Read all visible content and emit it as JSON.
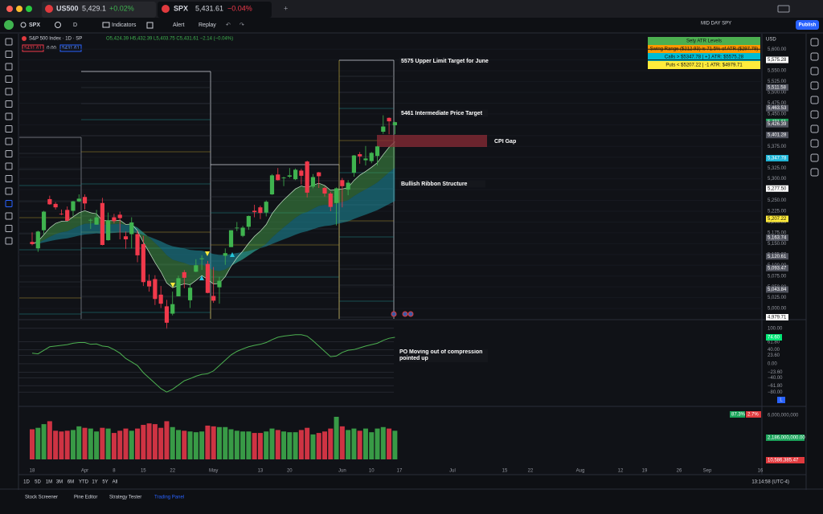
{
  "tabs": [
    {
      "symbol": "US500",
      "price": "5,429.1",
      "change": "+0.02%"
    },
    {
      "symbol": "SPX",
      "price": "5,431.61",
      "change": "−0.04%"
    }
  ],
  "toolbar": {
    "symbol": "SPX",
    "interval": "D",
    "indicators": "Indicators",
    "alert": "Alert",
    "replay": "Replay",
    "layout": "MID DAY SPY",
    "publish": "Publish"
  },
  "legend": {
    "title": "S&P 500 Index · 1D · SP",
    "ohlc": "O5,424.39 H5,432.39 L5,403.75 C5,431.61 −2.14 (−0.04%)",
    "boxes": [
      "5431.61",
      "0.00",
      "5431.61"
    ]
  },
  "atr_table": {
    "title": "Sety ATR Levels",
    "rows": [
      "Swing Range ($212.93) is 71.5% of ATR ($297.79)",
      "Calls > $5347.78 | +1 ATR: $5575.28",
      "Puts < $5207.22 | -1 ATR: $4979.71"
    ]
  },
  "chart_data": [
    {
      "type": "candlestick",
      "currency": "USD",
      "up_color": "#3fb34f",
      "down_color": "#f0394b",
      "categories": [
        "18",
        null,
        null,
        null,
        null,
        null,
        null,
        null,
        null,
        "Apr",
        null,
        null,
        null,
        null,
        "8",
        null,
        null,
        null,
        null,
        "15",
        null,
        null,
        null,
        null,
        "22",
        null,
        null,
        null,
        null,
        null,
        null,
        "May",
        null,
        null,
        null,
        null,
        null,
        null,
        null,
        "13",
        null,
        null,
        null,
        null,
        "20",
        null,
        null,
        null,
        null,
        null,
        null,
        null,
        null,
        "Jun",
        null,
        null,
        null,
        null,
        "10",
        null,
        null,
        null,
        null
      ],
      "future_categories": [
        "17",
        "Jul",
        "15",
        "22",
        "Aug",
        "12",
        "19",
        "26",
        "Sep",
        "16"
      ],
      "ohlc": [
        [
          5154,
          5176,
          5146,
          5149
        ],
        [
          5139,
          5180,
          5131,
          5178
        ],
        [
          5181,
          5226,
          5171,
          5224
        ],
        [
          5253,
          5261,
          5240,
          5241
        ],
        [
          5242,
          5246,
          5229,
          5234
        ],
        [
          5219,
          5229,
          5216,
          5218
        ],
        [
          5228,
          5236,
          5203,
          5203
        ],
        [
          5226,
          5249,
          5214,
          5248
        ],
        [
          5248,
          5264,
          5246,
          5254
        ],
        [
          5258,
          5264,
          5229,
          5243
        ],
        [
          5204,
          5208,
          5184,
          5205
        ],
        [
          5194,
          5228,
          5194,
          5211
        ],
        [
          5244,
          5256,
          5146,
          5147
        ],
        [
          5158,
          5222,
          5157,
          5204
        ],
        [
          5211,
          5219,
          5197,
          5202
        ],
        [
          5217,
          5224,
          5160,
          5209
        ],
        [
          5167,
          5178,
          5138,
          5160
        ],
        [
          5172,
          5211,
          5139,
          5199
        ],
        [
          5172,
          5180,
          5107,
          5123
        ],
        [
          5149,
          5168,
          5052,
          5061
        ],
        [
          5064,
          5079,
          5039,
          5051
        ],
        [
          5068,
          5077,
          5008,
          5022
        ],
        [
          5032,
          5052,
          5001,
          5011
        ],
        [
          5005,
          5020,
          4953,
          4967
        ],
        [
          4988,
          5039,
          4984,
          5010
        ],
        [
          5028,
          5076,
          5028,
          5070
        ],
        [
          5084,
          5089,
          5047,
          5071
        ],
        [
          5019,
          5058,
          5001,
          5048
        ],
        [
          5085,
          5114,
          5084,
          5100
        ],
        [
          5114,
          5123,
          5089,
          5116
        ],
        [
          5103,
          5110,
          5035,
          5036
        ],
        [
          5029,
          5096,
          5013,
          5018
        ],
        [
          5049,
          5073,
          5011,
          5064
        ],
        [
          5122,
          5139,
          5101,
          5128
        ],
        [
          5142,
          5181,
          5142,
          5181
        ],
        [
          5187,
          5200,
          5179,
          5187
        ],
        [
          5168,
          5191,
          5165,
          5187
        ],
        [
          5189,
          5215,
          5182,
          5214
        ],
        [
          5226,
          5240,
          5211,
          5223
        ],
        [
          5234,
          5238,
          5207,
          5221
        ],
        [
          5222,
          5250,
          5213,
          5247
        ],
        [
          5264,
          5311,
          5263,
          5308
        ],
        [
          5310,
          5325,
          5296,
          5297
        ],
        [
          5303,
          5305,
          5283,
          5303
        ],
        [
          5305,
          5325,
          5302,
          5308
        ],
        [
          5299,
          5324,
          5297,
          5321
        ],
        [
          5319,
          5323,
          5287,
          5307
        ],
        [
          5340,
          5342,
          5257,
          5268
        ],
        [
          5282,
          5311,
          5278,
          5304
        ],
        [
          5315,
          5316,
          5279,
          5306
        ],
        [
          5279,
          5282,
          5259,
          5266
        ],
        [
          5266,
          5270,
          5225,
          5235
        ],
        [
          5244,
          5280,
          5192,
          5278
        ],
        [
          5297,
          5302,
          5234,
          5283
        ],
        [
          5275,
          5297,
          5262,
          5291
        ],
        [
          5314,
          5355,
          5305,
          5354
        ],
        [
          5357,
          5362,
          5335,
          5352
        ],
        [
          5343,
          5376,
          5331,
          5347
        ],
        [
          5341,
          5362,
          5336,
          5360
        ],
        [
          5353,
          5376,
          5331,
          5375
        ],
        [
          5409,
          5447,
          5404,
          5421
        ],
        [
          5441,
          5442,
          5403,
          5433
        ],
        [
          5424,
          5432,
          5403,
          5431
        ]
      ],
      "ylim": [
        4976,
        5632
      ],
      "yticks": [
        {
          "value": 5000,
          "label": "5,000.00"
        },
        {
          "value": 5025,
          "label": "5,025.00"
        },
        {
          "value": 5050,
          "label": "5,050.00"
        },
        {
          "value": 5075,
          "label": "5,075.00"
        },
        {
          "value": 5100,
          "label": "5,100.00"
        },
        {
          "value": 5125,
          "label": "5,125.00"
        },
        {
          "value": 5150,
          "label": "5,150.00"
        },
        {
          "value": 5175,
          "label": "5,175.00"
        },
        {
          "value": 5200,
          "label": "5,200.00"
        },
        {
          "value": 5225,
          "label": "5,225.00"
        },
        {
          "value": 5250,
          "label": "5,250.00"
        },
        {
          "value": 5275,
          "label": "5,275.00"
        },
        {
          "value": 5300,
          "label": "5,300.00"
        },
        {
          "value": 5325,
          "label": "5,325.00"
        },
        {
          "value": 5350,
          "label": "5,350.00"
        },
        {
          "value": 5375,
          "label": "5,375.00"
        },
        {
          "value": 5400,
          "label": "5,400.00"
        },
        {
          "value": 5425,
          "label": "5,425.00"
        },
        {
          "value": 5450,
          "label": "5,450.00"
        },
        {
          "value": 5475,
          "label": "5,475.00"
        },
        {
          "value": 5500,
          "label": "5,500.00"
        },
        {
          "value": 5525,
          "label": "5,525.00"
        },
        {
          "value": 5550,
          "label": "5,550.00"
        },
        {
          "value": 5575,
          "label": "5,575.00"
        },
        {
          "value": 5600,
          "label": "5,600.00"
        }
      ],
      "price_labels": [
        {
          "value": 5575.28,
          "label": "5,575.28",
          "color": "#ffffff"
        },
        {
          "value": 5511.58,
          "label": "5,511.58",
          "color": "#50535e"
        },
        {
          "value": 5463.53,
          "label": "5,463.53",
          "color": "#50535e"
        },
        {
          "value": 5431.61,
          "label": "5,431.61",
          "color": "#1aa35a"
        },
        {
          "value": 5426.39,
          "label": "5,426.39",
          "color": "#50535e"
        },
        {
          "value": 5401.28,
          "label": "5,401.28",
          "color": "#50535e"
        },
        {
          "value": 5347.78,
          "label": "5,347.78",
          "color": "#1fb6d8"
        },
        {
          "value": 5277.5,
          "label": "5,277.50",
          "color": "#ffffff"
        },
        {
          "value": 5207.22,
          "label": "5,207.22",
          "color": "#ffeb3b"
        },
        {
          "value": 5163.74,
          "label": "5,163.74",
          "color": "#50535e"
        },
        {
          "value": 5120.61,
          "label": "5,120.61",
          "color": "#50535e"
        },
        {
          "value": 5093.47,
          "label": "5,093.47",
          "color": "#50535e"
        },
        {
          "value": 5043.84,
          "label": "5,043.84",
          "color": "#50535e"
        },
        {
          "value": 4979.71,
          "label": "4,979.71",
          "color": "#ffffff"
        }
      ],
      "annotations": [
        "5575 Upper Limit Target for June",
        "5461 Intermediate Price Target",
        "CPI Gap",
        "Bullish Ribbon Structure"
      ]
    },
    {
      "type": "line",
      "color": "#4caf50",
      "annotation": "PO Moving out of compression pointed up",
      "values": [
        30,
        28,
        38,
        48,
        50,
        52,
        54,
        58,
        60,
        60,
        55,
        56,
        50,
        48,
        40,
        30,
        15,
        5,
        -5,
        -25,
        -40,
        -55,
        -70,
        -80,
        -72,
        -60,
        -48,
        -42,
        -35,
        -30,
        -28,
        -20,
        -5,
        10,
        25,
        35,
        42,
        48,
        52,
        55,
        60,
        68,
        75,
        78,
        80,
        82,
        82,
        78,
        65,
        50,
        35,
        20,
        22,
        32,
        38,
        40,
        45,
        50,
        54,
        58,
        66,
        72,
        74.6
      ],
      "ylim": [
        -118,
        120
      ],
      "yticks": [
        {
          "value": 100,
          "label": "100.00"
        },
        {
          "value": 61.8,
          "label": "61.80"
        },
        {
          "value": 40,
          "label": "40.00"
        },
        {
          "value": 23.6,
          "label": "23.60"
        },
        {
          "value": 0,
          "label": "0.00"
        },
        {
          "value": -23.6,
          "label": "−23.60"
        },
        {
          "value": -40,
          "label": "−40.00"
        },
        {
          "value": -61.8,
          "label": "−61.80"
        },
        {
          "value": -80,
          "label": "−80.00"
        }
      ],
      "last_label": {
        "value": 74.6,
        "label": "74.60",
        "color": "#00e676"
      },
      "scale_mode": "L"
    },
    {
      "type": "bar",
      "values": [
        4100000000,
        4300000000,
        4800000000,
        5200000000,
        3900000000,
        3800000000,
        3900000000,
        4000000000,
        4500000000,
        4300000000,
        4200000000,
        3800000000,
        4300000000,
        4200000000,
        3600000000,
        3900000000,
        4200000000,
        3900000000,
        4200000000,
        4700000000,
        4900000000,
        4800000000,
        4300000000,
        5200000000,
        4400000000,
        4000000000,
        3900000000,
        3800000000,
        3700000000,
        3800000000,
        4600000000,
        4500000000,
        4400000000,
        4400000000,
        4100000000,
        3900000000,
        3800000000,
        3800000000,
        3600000000,
        3600000000,
        3800000000,
        4200000000,
        4000000000,
        3800000000,
        3700000000,
        3700000000,
        4000000000,
        4300000000,
        3400000000,
        3600000000,
        3800000000,
        4200000000,
        5800000000,
        4500000000,
        4000000000,
        4200000000,
        3900000000,
        4200000000,
        3700000000,
        4200000000,
        4400000000,
        4200000000,
        3900000000
      ],
      "ylim": [
        0,
        7000000000
      ],
      "yticks": [
        {
          "value": 3000000000,
          "label": "3,000,000,000"
        },
        {
          "value": 6000000000,
          "label": "6,000,000,000"
        }
      ],
      "price_labels": [
        {
          "value": 2186000000,
          "label": "2,186,000,000.00",
          "color": "#1aa35a"
        },
        {
          "value": 10586385.47,
          "label": "10,586,385.47",
          "color": "#e03a3e"
        }
      ],
      "percent_labels": [
        "87.3%",
        "2.7%"
      ]
    }
  ],
  "bottom": {
    "ranges": [
      "1D",
      "5D",
      "1M",
      "3M",
      "6M",
      "YTD",
      "1Y",
      "5Y",
      "All"
    ],
    "clock": "13:14:58 (UTC-4)",
    "panels": [
      "Stock Screener",
      "Pine Editor",
      "Strategy Tester",
      "Trading Panel"
    ]
  }
}
